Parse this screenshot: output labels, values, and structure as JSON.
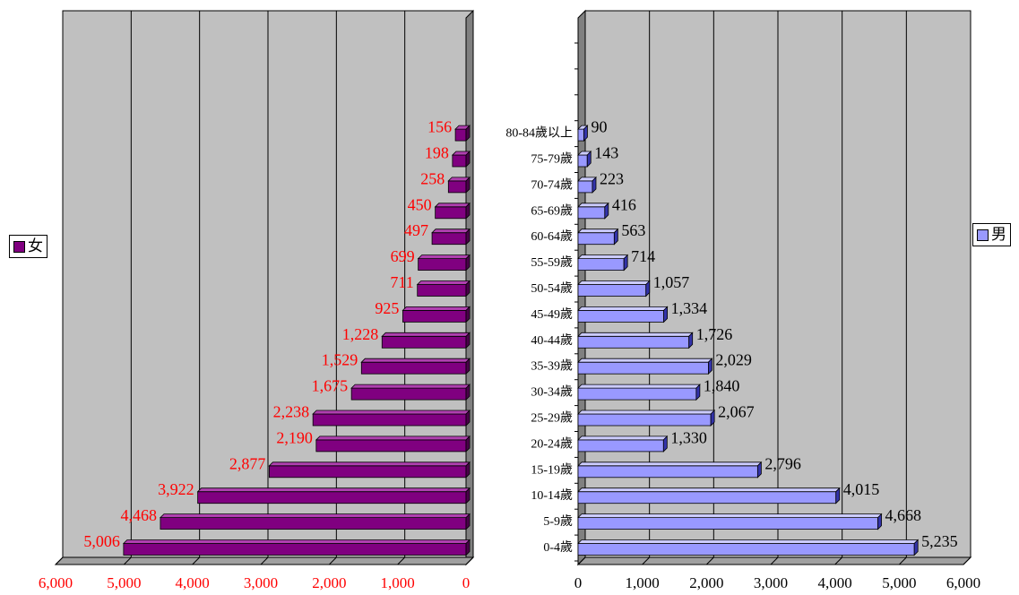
{
  "chart_data": [
    {
      "type": "bar",
      "orientation": "horizontal-reversed",
      "categories": [
        "0-4歲",
        "5-9歲",
        "10-14歲",
        "15-19歲",
        "20-24歲",
        "25-29歲",
        "30-34歲",
        "35-39歲",
        "40-44歲",
        "45-49歲",
        "50-54歲",
        "55-59歲",
        "60-64歲",
        "65-69歲",
        "70-74歲",
        "75-79歲",
        "80-84歲以上"
      ],
      "series": [
        {
          "name": "女",
          "values": [
            5006,
            4468,
            3922,
            2877,
            2190,
            2238,
            1675,
            1529,
            1228,
            925,
            711,
            699,
            497,
            450,
            258,
            198,
            156
          ]
        }
      ],
      "value_labels": [
        "5,006",
        "4,468",
        "3,922",
        "2,877",
        "2,190",
        "2,238",
        "1,675",
        "1,529",
        "1,228",
        "925",
        "711",
        "699",
        "497",
        "450",
        "258",
        "198",
        "156"
      ],
      "xlim": [
        0,
        6000
      ],
      "x_ticks": [
        "0",
        "1,000",
        "2,000",
        "3,000",
        "4,000",
        "5,000",
        "6,000"
      ],
      "grid": true,
      "legend_placement": "left",
      "colors": {
        "bar": "#800080",
        "bar_top": "#b040b0",
        "bar_side": "#4a004a",
        "label": "#ff0000",
        "plot_bg": "#c0c0c0"
      }
    },
    {
      "type": "bar",
      "orientation": "horizontal",
      "categories": [
        "0-4歲",
        "5-9歲",
        "10-14歲",
        "15-19歲",
        "20-24歲",
        "25-29歲",
        "30-34歲",
        "35-39歲",
        "40-44歲",
        "45-49歲",
        "50-54歲",
        "55-59歲",
        "60-64歲",
        "65-69歲",
        "70-74歲",
        "75-79歲",
        "80-84歲以上"
      ],
      "series": [
        {
          "name": "男",
          "values": [
            5235,
            4668,
            4015,
            2796,
            1330,
            2067,
            1840,
            2029,
            1726,
            1334,
            1057,
            714,
            563,
            416,
            223,
            143,
            90
          ]
        }
      ],
      "value_labels": [
        "5,235",
        "4,668",
        "4,015",
        "2,796",
        "1,330",
        "2,067",
        "1,840",
        "2,029",
        "1,726",
        "1,334",
        "1,057",
        "714",
        "563",
        "416",
        "223",
        "143",
        "90"
      ],
      "xlim": [
        0,
        6000
      ],
      "x_ticks": [
        "0",
        "1,000",
        "2,000",
        "3,000",
        "4,000",
        "5,000",
        "6,000"
      ],
      "grid": true,
      "legend_placement": "right",
      "colors": {
        "bar": "#9999ff",
        "bar_top": "#ccccff",
        "bar_side": "#3333aa",
        "label": "#000000",
        "plot_bg": "#c0c0c0"
      }
    }
  ],
  "legend": {
    "female": {
      "label": "女",
      "color": "#800080"
    },
    "male": {
      "label": "男",
      "color": "#9999ff"
    }
  }
}
